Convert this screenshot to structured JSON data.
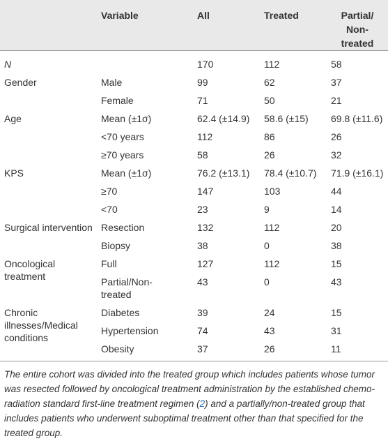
{
  "table": {
    "header": [
      null,
      "Variable",
      "All",
      "Treated",
      "Partial/ Non-treated"
    ],
    "rows": [
      [
        "N",
        null,
        "170",
        "112",
        "58"
      ],
      [
        "Gender",
        "Male",
        "99",
        "62",
        "37"
      ],
      [
        null,
        "Female",
        "71",
        "50",
        "21"
      ],
      [
        "Age",
        "Mean (±1σ)",
        "62.4 (±14.9)",
        "58.6 (±15)",
        "69.8 (±11.6)"
      ],
      [
        null,
        "<70 years",
        "112",
        "86",
        "26"
      ],
      [
        null,
        "≥70 years",
        "58",
        "26",
        "32"
      ],
      [
        "KPS",
        "Mean (±1σ)",
        "76.2 (±13.1)",
        "78.4 (±10.7)",
        "71.9 (±16.1)"
      ],
      [
        null,
        "≥70",
        "147",
        "103",
        "44"
      ],
      [
        null,
        "<70",
        "23",
        "9",
        "14"
      ],
      [
        "Surgical intervention",
        "Resection",
        "132",
        "112",
        "20"
      ],
      [
        null,
        "Biopsy",
        "38",
        "0",
        "38"
      ],
      [
        "Oncological treatment",
        "Full",
        "127",
        "112",
        "15"
      ],
      [
        null,
        "Partial/Non-treated",
        "43",
        "0",
        "43"
      ],
      [
        "Chronic illnesses/Medical conditions",
        "Diabetes",
        "39",
        "24",
        "15"
      ],
      [
        null,
        "Hypertension",
        "74",
        "43",
        "31"
      ],
      [
        null,
        "Obesity",
        "37",
        "26",
        "11"
      ]
    ],
    "footnote": {
      "before": "The entire cohort was divided into the treated group which includes patients whose tumor was resected followed by oncological treatment administration by the established chemo-radiation standard first-line treatment regimen (",
      "ref": "2",
      "after": ") and a partially/non-treated group that includes patients who underwent suboptimal treatment other than that specified for the treated group."
    }
  }
}
